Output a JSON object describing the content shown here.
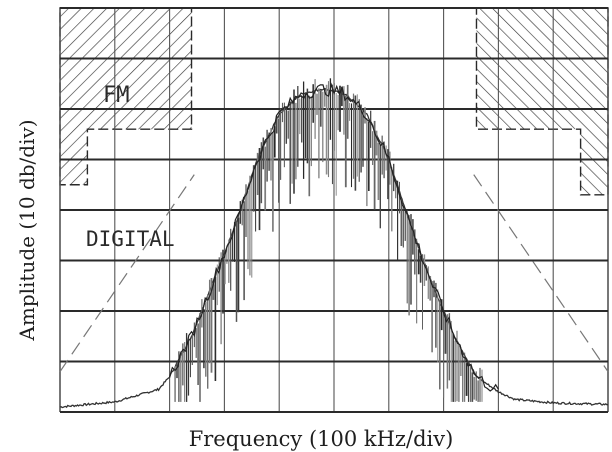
{
  "chart_data": {
    "type": "spectrum",
    "title": "",
    "xlabel": "Frequency (100 kHz/div)",
    "ylabel": "Amplitude (10 db/div)",
    "x_divisions": 10,
    "y_divisions": 8,
    "grid": true,
    "regions": [
      {
        "label": "FM",
        "side": "left",
        "style": "hatched"
      },
      {
        "label": "FM",
        "side": "right",
        "style": "hatched"
      }
    ],
    "annotations": [
      {
        "text": "FM"
      },
      {
        "text": "DIGITAL"
      }
    ],
    "spectrum_envelope_div": {
      "x": [
        0,
        1.0,
        1.8,
        2.0,
        2.4,
        2.8,
        3.2,
        3.6,
        4.0,
        4.4,
        4.8,
        5.2,
        5.6,
        6.0,
        6.4,
        6.8,
        7.2,
        7.6,
        8.0,
        8.3,
        9.0,
        10.0
      ],
      "y": [
        0.1,
        0.2,
        0.45,
        0.7,
        1.5,
        2.6,
        3.7,
        5.0,
        5.9,
        6.3,
        6.4,
        6.3,
        5.9,
        5.0,
        3.7,
        2.5,
        1.5,
        0.7,
        0.4,
        0.25,
        0.18,
        0.15
      ]
    }
  }
}
